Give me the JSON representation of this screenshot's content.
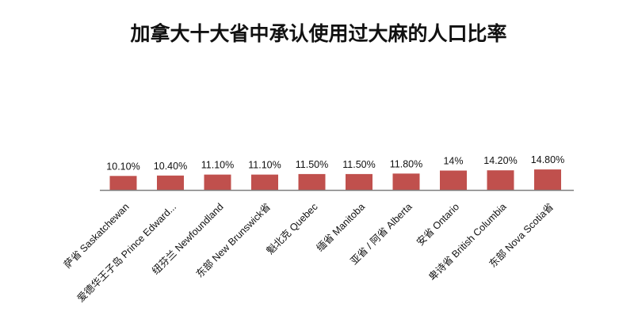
{
  "chart_data": {
    "type": "bar",
    "title": "加拿大十大省中承认使用过大麻的人口比率",
    "categories": [
      "萨省 Saskatchewan",
      "爱德华王子岛 Prince Edward...",
      "纽芬兰 Newfoundland",
      "东部 New Brunswick省",
      "魁北克 Quebec",
      "缅省 Manitoba",
      "亚省 / 阿省 Alberta",
      "安省 Ontario",
      "卑诗省 British Columbia",
      "东部 Nova Scotia省"
    ],
    "values": [
      10.1,
      10.4,
      11.1,
      11.1,
      11.5,
      11.5,
      11.8,
      14.0,
      14.2,
      14.8
    ],
    "value_labels": [
      "10.10%",
      "10.40%",
      "11.10%",
      "11.10%",
      "11.50%",
      "11.50%",
      "11.80%",
      "14%",
      "14.20%",
      "14.80%"
    ],
    "ylim": [
      0,
      100
    ],
    "bar_color": "#c0504d",
    "axis_color": "#7f7f7f",
    "grid": false,
    "xlabel": "",
    "ylabel": ""
  }
}
